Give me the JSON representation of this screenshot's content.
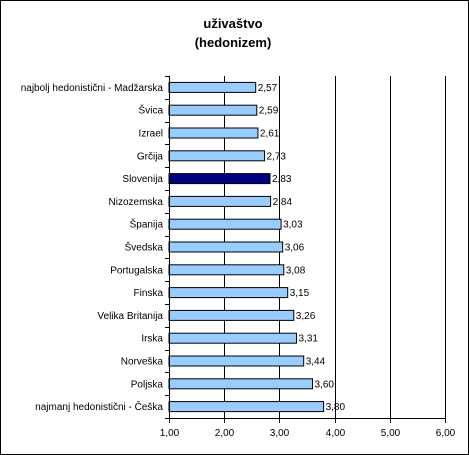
{
  "chart_data": {
    "type": "bar",
    "orientation": "horizontal",
    "title": "uživaštvo",
    "subtitle": "(hedonizem)",
    "categories": [
      "najbolj hedonistični - Madžarska",
      "Švica",
      "Izrael",
      "Grčija",
      "Slovenija",
      "Nizozemska",
      "Španija",
      "Švedska",
      "Portugalska",
      "Finska",
      "Velika Britanija",
      "Irska",
      "Norveška",
      "Poljska",
      "najmanj hedonistični - Češka"
    ],
    "values": [
      2.57,
      2.59,
      2.61,
      2.73,
      2.83,
      2.84,
      3.03,
      3.06,
      3.08,
      3.15,
      3.26,
      3.31,
      3.44,
      3.6,
      3.8
    ],
    "value_labels": [
      "2,57",
      "2,59",
      "2,61",
      "2,73",
      "2,83",
      "2,84",
      "3,03",
      "3,06",
      "3,08",
      "3,15",
      "3,26",
      "3,31",
      "3,44",
      "3,60",
      "3,80"
    ],
    "xlim": [
      1,
      6
    ],
    "x_ticks": [
      1,
      2,
      3,
      4,
      5,
      6
    ],
    "x_tick_labels": [
      "1,00",
      "2,00",
      "3,00",
      "4,00",
      "5,00",
      "6,00"
    ],
    "vertical_gridlines": true,
    "highlight_category": "Slovenija",
    "colors": {
      "bar": "#99ccff",
      "highlight": "#000080",
      "bar_stroke": "#000000",
      "axis": "#000000"
    }
  }
}
